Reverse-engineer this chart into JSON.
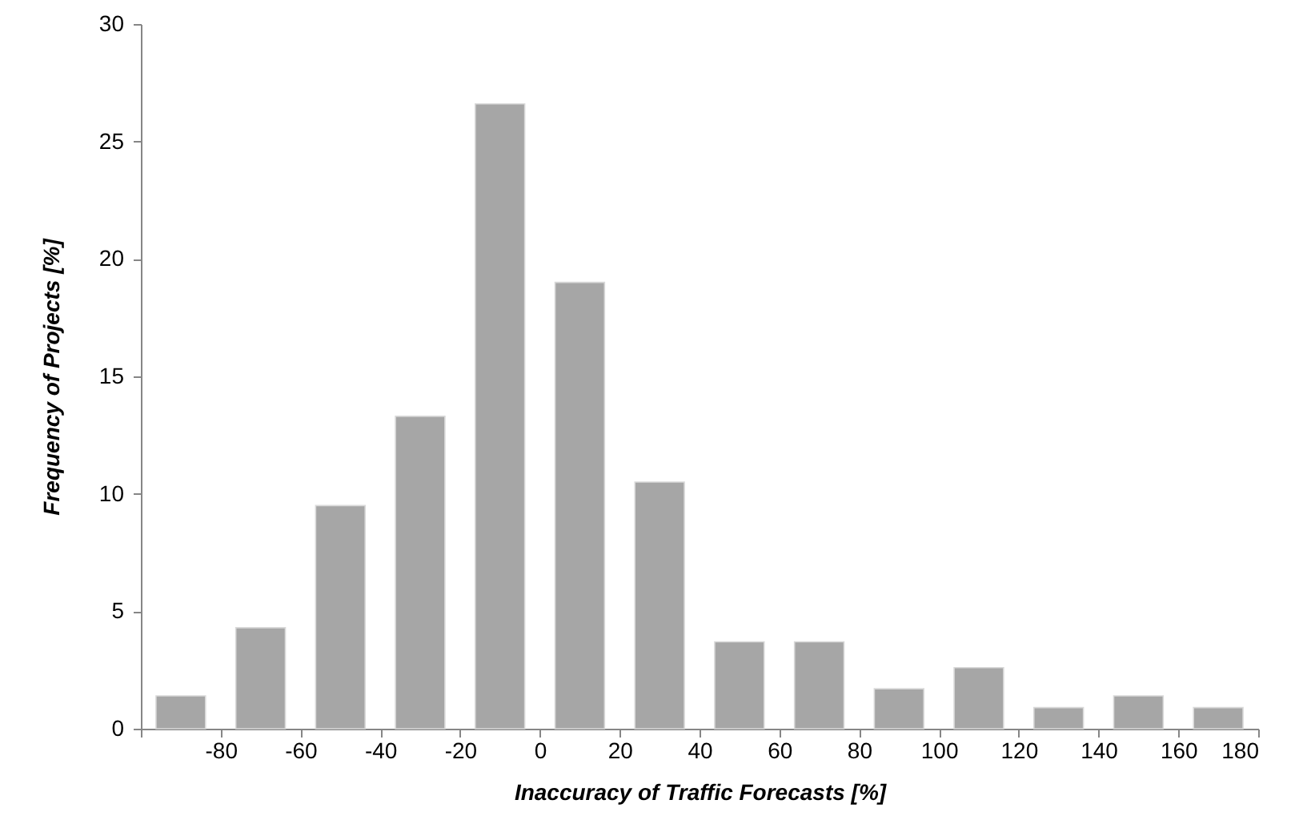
{
  "chart_data": {
    "type": "histogram",
    "xlabel": "Inaccuracy of Traffic Forecasts [%]",
    "ylabel": "Frequency of Projects [%]",
    "bins": [
      -100,
      -80,
      -60,
      -40,
      -20,
      0,
      20,
      40,
      60,
      80,
      100,
      120,
      140,
      160,
      180
    ],
    "values": [
      1.4,
      4.3,
      9.5,
      13.3,
      26.6,
      19.0,
      10.5,
      3.7,
      3.7,
      1.7,
      2.6,
      0.9,
      1.4,
      0.9
    ],
    "color": "#a6a6a6",
    "xlim": [
      -100,
      180
    ],
    "xticks": [
      {
        "value": -100,
        "label": null
      },
      -80,
      -60,
      -40,
      -20,
      0,
      20,
      40,
      60,
      80,
      100,
      120,
      140,
      160,
      180
    ],
    "ylim": [
      0,
      30
    ],
    "yticks": [
      0,
      5,
      10,
      15,
      20,
      25,
      30
    ],
    "grid": false
  }
}
